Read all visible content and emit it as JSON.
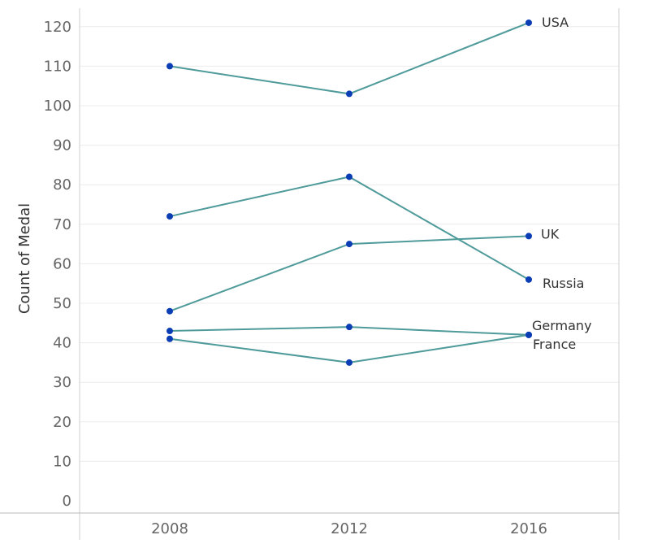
{
  "chart_data": {
    "type": "line",
    "title": "",
    "xlabel": "",
    "ylabel": "Count of Medal",
    "categories": [
      "2008",
      "2012",
      "2016"
    ],
    "yticks": [
      0,
      10,
      20,
      30,
      40,
      50,
      60,
      70,
      80,
      90,
      100,
      110,
      120
    ],
    "ylim": [
      0,
      125
    ],
    "grid": true,
    "line_color": "#4f9a9a",
    "marker_color": "#0b3db5",
    "series": [
      {
        "name": "USA",
        "values": [
          110,
          103,
          121
        ]
      },
      {
        "name": "Russia",
        "values": [
          72,
          82,
          56
        ]
      },
      {
        "name": "UK",
        "values": [
          48,
          65,
          67
        ]
      },
      {
        "name": "Germany",
        "values": [
          43,
          44,
          42
        ]
      },
      {
        "name": "France",
        "values": [
          41,
          35,
          42
        ]
      }
    ]
  }
}
